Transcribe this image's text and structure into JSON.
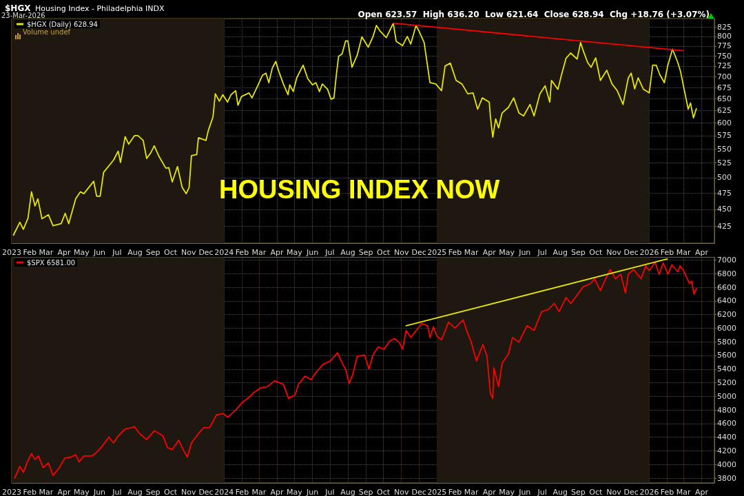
{
  "chart_data": [
    {
      "type": "line",
      "title": "$HGX",
      "subtitle": "Housing Index - Philadelphia INDX",
      "annotations": [
        "23-Mar-2026",
        "Open 623.57  High 636.20  Low 621.64  Close 628.94  Chg +18.76 (+3.07%)",
        "Volume undef",
        "HOUSING INDEX NOW"
      ],
      "series": [
        {
          "name": "$HGX (Daily) 628.94",
          "color": "#e6e600",
          "x": [
            "2023-01-04",
            "2023-01-15",
            "2023-01-21",
            "2023-01-29",
            "2023-02-04",
            "2023-02-10",
            "2023-02-15",
            "2023-02-22",
            "2023-03-05",
            "2023-03-13",
            "2023-03-27",
            "2023-04-03",
            "2023-04-09",
            "2023-04-21",
            "2023-04-29",
            "2023-05-05",
            "2023-05-22",
            "2023-05-27",
            "2023-06-02",
            "2023-06-08",
            "2023-06-25",
            "2023-07-03",
            "2023-07-07",
            "2023-07-15",
            "2023-07-21",
            "2023-07-31",
            "2023-08-06",
            "2023-08-15",
            "2023-08-21",
            "2023-08-28",
            "2023-09-03",
            "2023-09-11",
            "2023-09-23",
            "2023-09-28",
            "2023-10-04",
            "2023-10-13",
            "2023-10-21",
            "2023-10-28",
            "2023-11-02",
            "2023-11-06",
            "2023-11-15",
            "2023-11-18",
            "2023-12-01",
            "2023-12-05",
            "2023-12-13",
            "2023-12-17",
            "2023-12-24",
            "2023-12-30",
            "2024-01-07",
            "2024-01-13",
            "2024-01-21",
            "2024-01-25",
            "2024-01-31",
            "2024-02-13",
            "2024-02-18",
            "2024-02-28",
            "2024-03-07",
            "2024-03-13",
            "2024-03-18",
            "2024-03-24",
            "2024-03-30",
            "2024-04-04",
            "2024-04-12",
            "2024-04-20",
            "2024-04-23",
            "2024-04-29",
            "2024-05-05",
            "2024-05-16",
            "2024-05-24",
            "2024-06-01",
            "2024-06-07",
            "2024-06-13",
            "2024-06-18",
            "2024-06-27",
            "2024-07-03",
            "2024-07-08",
            "2024-07-12",
            "2024-07-16",
            "2024-07-22",
            "2024-07-28",
            "2024-08-01",
            "2024-08-08",
            "2024-08-17",
            "2024-08-25",
            "2024-09-05",
            "2024-09-13",
            "2024-09-19",
            "2024-09-25",
            "2024-10-06",
            "2024-10-18",
            "2024-10-23",
            "2024-11-03",
            "2024-11-11",
            "2024-11-17",
            "2024-11-26",
            "2024-12-01",
            "2024-12-10",
            "2024-12-20",
            "2024-12-30",
            "2025-01-09",
            "2025-01-15",
            "2025-01-24",
            "2025-02-03",
            "2025-02-13",
            "2025-02-23",
            "2025-03-04",
            "2025-03-12",
            "2025-03-20",
            "2025-04-01",
            "2025-04-03",
            "2025-04-07",
            "2025-04-12",
            "2025-04-17",
            "2025-04-23",
            "2025-05-04",
            "2025-05-13",
            "2025-05-22",
            "2025-05-30",
            "2025-06-10",
            "2025-06-17",
            "2025-06-27",
            "2025-07-06",
            "2025-07-14",
            "2025-07-17",
            "2025-07-28",
            "2025-08-03",
            "2025-08-11",
            "2025-08-19",
            "2025-08-30",
            "2025-09-05",
            "2025-09-09",
            "2025-09-17",
            "2025-09-23",
            "2025-10-01",
            "2025-10-09",
            "2025-10-20",
            "2025-10-29",
            "2025-11-07",
            "2025-11-17",
            "2025-11-26",
            "2025-12-01",
            "2025-12-07",
            "2025-12-13",
            "2025-12-22",
            "2026-01-01",
            "2026-01-07",
            "2026-01-13",
            "2026-01-19",
            "2026-01-27",
            "2026-02-02",
            "2026-02-10",
            "2026-02-19",
            "2026-02-24",
            "2026-03-02",
            "2026-03-09",
            "2026-03-13",
            "2026-03-18",
            "2026-03-23"
          ],
          "values": [
            413,
            431,
            421,
            437,
            477,
            455,
            466,
            436,
            442,
            426,
            429,
            444,
            429,
            466,
            477,
            474,
            494,
            470,
            470,
            509,
            530,
            546,
            526,
            573,
            559,
            575,
            575,
            566,
            533,
            543,
            556,
            537,
            516,
            517,
            493,
            519,
            484,
            474,
            484,
            538,
            540,
            571,
            566,
            585,
            612,
            661,
            645,
            659,
            643,
            659,
            668,
            636,
            655,
            663,
            652,
            679,
            703,
            708,
            686,
            720,
            736,
            713,
            683,
            659,
            681,
            666,
            697,
            727,
            695,
            681,
            686,
            666,
            683,
            671,
            649,
            652,
            703,
            749,
            755,
            788,
            788,
            722,
            752,
            799,
            772,
            799,
            830,
            815,
            797,
            836,
            787,
            776,
            800,
            780,
            830,
            815,
            784,
            686,
            683,
            668,
            725,
            732,
            691,
            683,
            661,
            663,
            628,
            652,
            643,
            612,
            572,
            608,
            590,
            620,
            632,
            652,
            620,
            614,
            638,
            614,
            661,
            679,
            643,
            691,
            671,
            703,
            744,
            757,
            742,
            784,
            765,
            734,
            722,
            745,
            691,
            715,
            683,
            668,
            638,
            697,
            708,
            672,
            697,
            671,
            663,
            727,
            727,
            705,
            686,
            727,
            767,
            734,
            711,
            671,
            628,
            641,
            610,
            629
          ]
        },
        {
          "color": "#ff0000",
          "x": [
            "2024-10-18",
            "2026-03-01"
          ],
          "values": [
            836,
            763
          ]
        }
      ],
      "xlim": [
        "2023-01-01",
        "2026-04-23"
      ],
      "xticks": [
        {
          "value": "2023-01-01",
          "label": "2023"
        },
        {
          "value": "2023-02-01",
          "label": "Feb"
        },
        {
          "value": "2023-03-01",
          "label": "Mar"
        },
        {
          "value": "2023-04-01",
          "label": "Apr"
        },
        {
          "value": "2023-05-01",
          "label": "May"
        },
        {
          "value": "2023-06-01",
          "label": "Jun"
        },
        {
          "value": "2023-07-01",
          "label": "Jul"
        },
        {
          "value": "2023-08-01",
          "label": "Aug"
        },
        {
          "value": "2023-09-01",
          "label": "Sep"
        },
        {
          "value": "2023-10-01",
          "label": "Oct"
        },
        {
          "value": "2023-11-01",
          "label": "Nov"
        },
        {
          "value": "2023-12-01",
          "label": "Dec"
        },
        {
          "value": "2024-01-01",
          "label": "2024"
        },
        {
          "value": "2024-02-01",
          "label": "Feb"
        },
        {
          "value": "2024-03-01",
          "label": "Mar"
        },
        {
          "value": "2024-04-01",
          "label": "Apr"
        },
        {
          "value": "2024-05-01",
          "label": "May"
        },
        {
          "value": "2024-06-01",
          "label": "Jun"
        },
        {
          "value": "2024-07-01",
          "label": "Jul"
        },
        {
          "value": "2024-08-01",
          "label": "Aug"
        },
        {
          "value": "2024-09-01",
          "label": "Sep"
        },
        {
          "value": "2024-10-01",
          "label": "Oct"
        },
        {
          "value": "2024-11-01",
          "label": "Nov"
        },
        {
          "value": "2024-12-01",
          "label": "Dec"
        },
        {
          "value": "2025-01-01",
          "label": "2025"
        },
        {
          "value": "2025-02-01",
          "label": "Feb"
        },
        {
          "value": "2025-03-01",
          "label": "Mar"
        },
        {
          "value": "2025-04-01",
          "label": "Apr"
        },
        {
          "value": "2025-05-01",
          "label": "May"
        },
        {
          "value": "2025-06-01",
          "label": "Jun"
        },
        {
          "value": "2025-07-01",
          "label": "Jul"
        },
        {
          "value": "2025-08-01",
          "label": "Aug"
        },
        {
          "value": "2025-09-01",
          "label": "Sep"
        },
        {
          "value": "2025-10-01",
          "label": "Oct"
        },
        {
          "value": "2025-11-01",
          "label": "Nov"
        },
        {
          "value": "2025-12-01",
          "label": "Dec"
        },
        {
          "value": "2026-01-01",
          "label": "2026"
        },
        {
          "value": "2026-02-01",
          "label": "Feb"
        },
        {
          "value": "2026-03-01",
          "label": "Mar"
        },
        {
          "value": "2026-04-01",
          "label": "Apr"
        }
      ],
      "ylim": [
        402,
        849
      ],
      "yticks": [
        425,
        450,
        475,
        500,
        525,
        550,
        575,
        600,
        625,
        650,
        675,
        700,
        725,
        750,
        775,
        800,
        825
      ],
      "log": true,
      "grid": true,
      "legend": "top left",
      "bands": [
        {
          "axis": "x",
          "from": "2023-01-01",
          "to": "2024-01-01",
          "color": "#1e1810"
        },
        {
          "axis": "x",
          "from": "2025-01-01",
          "to": "2026-01-01",
          "color": "#1e1810"
        }
      ]
    },
    {
      "type": "line",
      "series": [
        {
          "name": "$SPX 6581.00",
          "color": "#ff0000",
          "x": [
            "2023-01-06",
            "2023-01-15",
            "2023-01-21",
            "2023-01-28",
            "2023-02-04",
            "2023-02-10",
            "2023-02-16",
            "2023-02-24",
            "2023-03-05",
            "2023-03-13",
            "2023-03-24",
            "2023-04-02",
            "2023-04-13",
            "2023-04-21",
            "2023-04-27",
            "2023-05-05",
            "2023-05-19",
            "2023-05-27",
            "2023-06-05",
            "2023-06-17",
            "2023-06-25",
            "2023-07-03",
            "2023-07-15",
            "2023-07-26",
            "2023-07-31",
            "2023-08-09",
            "2023-08-21",
            "2023-09-03",
            "2023-09-12",
            "2023-09-18",
            "2023-09-26",
            "2023-10-04",
            "2023-10-15",
            "2023-10-23",
            "2023-10-30",
            "2023-11-06",
            "2023-11-18",
            "2023-11-27",
            "2023-12-07",
            "2023-12-19",
            "2023-12-31",
            "2024-01-07",
            "2024-01-21",
            "2024-01-31",
            "2024-02-13",
            "2024-02-21",
            "2024-03-04",
            "2024-03-15",
            "2024-03-28",
            "2024-04-12",
            "2024-04-21",
            "2024-05-02",
            "2024-05-08",
            "2024-05-19",
            "2024-05-30",
            "2024-06-05",
            "2024-06-19",
            "2024-07-02",
            "2024-07-14",
            "2024-07-22",
            "2024-07-28",
            "2024-08-03",
            "2024-08-09",
            "2024-08-17",
            "2024-08-30",
            "2024-09-06",
            "2024-09-13",
            "2024-09-22",
            "2024-10-02",
            "2024-10-12",
            "2024-10-20",
            "2024-10-28",
            "2024-11-03",
            "2024-11-09",
            "2024-11-17",
            "2024-11-28",
            "2024-12-06",
            "2024-12-16",
            "2024-12-20",
            "2024-12-26",
            "2025-01-01",
            "2025-01-09",
            "2025-01-21",
            "2025-02-01",
            "2025-02-15",
            "2025-02-21",
            "2025-03-01",
            "2025-03-10",
            "2025-03-21",
            "2025-03-28",
            "2025-04-03",
            "2025-04-07",
            "2025-04-09",
            "2025-04-17",
            "2025-04-23",
            "2025-05-04",
            "2025-05-11",
            "2025-05-22",
            "2025-06-05",
            "2025-06-17",
            "2025-06-30",
            "2025-07-12",
            "2025-07-22",
            "2025-07-30",
            "2025-08-11",
            "2025-08-19",
            "2025-08-30",
            "2025-09-09",
            "2025-09-22",
            "2025-09-29",
            "2025-10-09",
            "2025-10-18",
            "2025-10-26",
            "2025-11-04",
            "2025-11-13",
            "2025-11-21",
            "2025-11-26",
            "2025-12-05",
            "2025-12-18",
            "2025-12-26",
            "2026-01-01",
            "2026-01-11",
            "2026-01-18",
            "2026-01-25",
            "2026-02-02",
            "2026-02-09",
            "2026-02-19",
            "2026-02-23",
            "2026-03-01",
            "2026-03-11",
            "2026-03-15",
            "2026-03-19",
            "2026-03-23"
          ],
          "values": [
            3800,
            3972,
            3885,
            4040,
            4161,
            4075,
            4126,
            3954,
            4023,
            3841,
            3954,
            4092,
            4109,
            4143,
            4040,
            4126,
            4126,
            4178,
            4264,
            4402,
            4316,
            4419,
            4522,
            4539,
            4556,
            4453,
            4367,
            4495,
            4453,
            4419,
            4247,
            4219,
            4357,
            4212,
            4109,
            4316,
            4453,
            4539,
            4539,
            4728,
            4746,
            4694,
            4797,
            4900,
            4986,
            5055,
            5124,
            5141,
            5227,
            5176,
            4969,
            5021,
            5176,
            5296,
            5245,
            5331,
            5468,
            5520,
            5640,
            5486,
            5400,
            5193,
            5313,
            5589,
            5606,
            5400,
            5606,
            5726,
            5692,
            5812,
            5847,
            5795,
            5692,
            5967,
            5864,
            5984,
            6070,
            6036,
            5864,
            6019,
            5881,
            5830,
            6088,
            6002,
            6122,
            5967,
            5795,
            5520,
            5761,
            5589,
            5038,
            4969,
            5417,
            5141,
            5485,
            5623,
            5864,
            5795,
            6036,
            5967,
            6243,
            6277,
            6363,
            6243,
            6449,
            6363,
            6483,
            6604,
            6656,
            6724,
            6552,
            6724,
            6862,
            6724,
            6793,
            6518,
            6793,
            6862,
            6724,
            6914,
            6845,
            6965,
            6793,
            6958,
            6793,
            6931,
            6828,
            6914,
            6845,
            6656,
            6690,
            6500,
            6581
          ]
        },
        {
          "color": "#e6e600",
          "x": [
            "2024-11-09",
            "2026-02-01"
          ],
          "values": [
            6036,
            7016
          ]
        }
      ],
      "xlim": [
        "2023-01-01",
        "2026-04-23"
      ],
      "xticks": [
        {
          "value": "2023-01-01",
          "label": "2023"
        },
        {
          "value": "2023-02-01",
          "label": "Feb"
        },
        {
          "value": "2023-03-01",
          "label": "Mar"
        },
        {
          "value": "2023-04-01",
          "label": "Apr"
        },
        {
          "value": "2023-05-01",
          "label": "May"
        },
        {
          "value": "2023-06-01",
          "label": "Jun"
        },
        {
          "value": "2023-07-01",
          "label": "Jul"
        },
        {
          "value": "2023-08-01",
          "label": "Aug"
        },
        {
          "value": "2023-09-01",
          "label": "Sep"
        },
        {
          "value": "2023-10-01",
          "label": "Oct"
        },
        {
          "value": "2023-11-01",
          "label": "Nov"
        },
        {
          "value": "2023-12-01",
          "label": "Dec"
        },
        {
          "value": "2024-01-01",
          "label": "2024"
        },
        {
          "value": "2024-02-01",
          "label": "Feb"
        },
        {
          "value": "2024-03-01",
          "label": "Mar"
        },
        {
          "value": "2024-04-01",
          "label": "Apr"
        },
        {
          "value": "2024-05-01",
          "label": "May"
        },
        {
          "value": "2024-06-01",
          "label": "Jun"
        },
        {
          "value": "2024-07-01",
          "label": "Jul"
        },
        {
          "value": "2024-08-01",
          "label": "Aug"
        },
        {
          "value": "2024-09-01",
          "label": "Sep"
        },
        {
          "value": "2024-10-01",
          "label": "Oct"
        },
        {
          "value": "2024-11-01",
          "label": "Nov"
        },
        {
          "value": "2024-12-01",
          "label": "Dec"
        },
        {
          "value": "2025-01-01",
          "label": "2025"
        },
        {
          "value": "2025-02-01",
          "label": "Feb"
        },
        {
          "value": "2025-03-01",
          "label": "Mar"
        },
        {
          "value": "2025-04-01",
          "label": "Apr"
        },
        {
          "value": "2025-05-01",
          "label": "May"
        },
        {
          "value": "2025-06-01",
          "label": "Jun"
        },
        {
          "value": "2025-07-01",
          "label": "Jul"
        },
        {
          "value": "2025-08-01",
          "label": "Aug"
        },
        {
          "value": "2025-09-01",
          "label": "Sep"
        },
        {
          "value": "2025-10-01",
          "label": "Oct"
        },
        {
          "value": "2025-11-01",
          "label": "Nov"
        },
        {
          "value": "2025-12-01",
          "label": "Dec"
        },
        {
          "value": "2026-01-01",
          "label": "2026"
        },
        {
          "value": "2026-02-01",
          "label": "Feb"
        },
        {
          "value": "2026-03-01",
          "label": "Mar"
        },
        {
          "value": "2026-04-01",
          "label": "Apr"
        }
      ],
      "ylim": [
        3730,
        7040
      ],
      "yticks": [
        3800,
        4000,
        4200,
        4400,
        4600,
        4800,
        5000,
        5200,
        5400,
        5600,
        5800,
        6000,
        6200,
        6400,
        6600,
        6800,
        7000
      ],
      "grid": true,
      "legend": "top left",
      "bands": [
        {
          "axis": "x",
          "from": "2023-01-01",
          "to": "2024-01-01",
          "color": "#1e1810"
        },
        {
          "axis": "x",
          "from": "2025-01-01",
          "to": "2026-01-01",
          "color": "#1e1810"
        }
      ]
    }
  ]
}
